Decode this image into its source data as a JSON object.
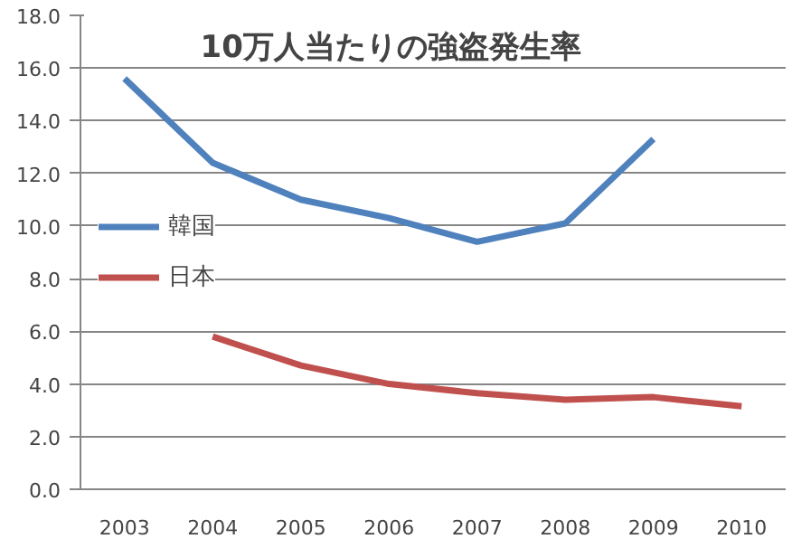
{
  "chart_data": {
    "type": "line",
    "title": "10万人当たりの強盗発生率",
    "categories": [
      "2003",
      "2004",
      "2005",
      "2006",
      "2007",
      "2008",
      "2009",
      "2010"
    ],
    "series": [
      {
        "name": "韓国",
        "color": "#4f81bd",
        "values": [
          15.6,
          12.4,
          11.0,
          10.3,
          9.4,
          10.1,
          13.3,
          null
        ]
      },
      {
        "name": "日本",
        "color": "#c0504d",
        "values": [
          null,
          5.8,
          4.7,
          4.0,
          3.65,
          3.4,
          3.5,
          3.15
        ]
      }
    ],
    "ylim": [
      0,
      18
    ],
    "yticks": [
      {
        "value": 0,
        "label": "0.0"
      },
      {
        "value": 2,
        "label": "2.0"
      },
      {
        "value": 4,
        "label": "4.0"
      },
      {
        "value": 6,
        "label": "6.0"
      },
      {
        "value": 8,
        "label": "8.0"
      },
      {
        "value": 10,
        "label": "10.0"
      },
      {
        "value": 12,
        "label": "12.0"
      },
      {
        "value": 14,
        "label": "14.0"
      },
      {
        "value": 16,
        "label": "16.0"
      },
      {
        "value": 18,
        "label": "18.0"
      }
    ],
    "grid": "y",
    "legend": "left",
    "marker": "none",
    "line_style": "solid"
  }
}
